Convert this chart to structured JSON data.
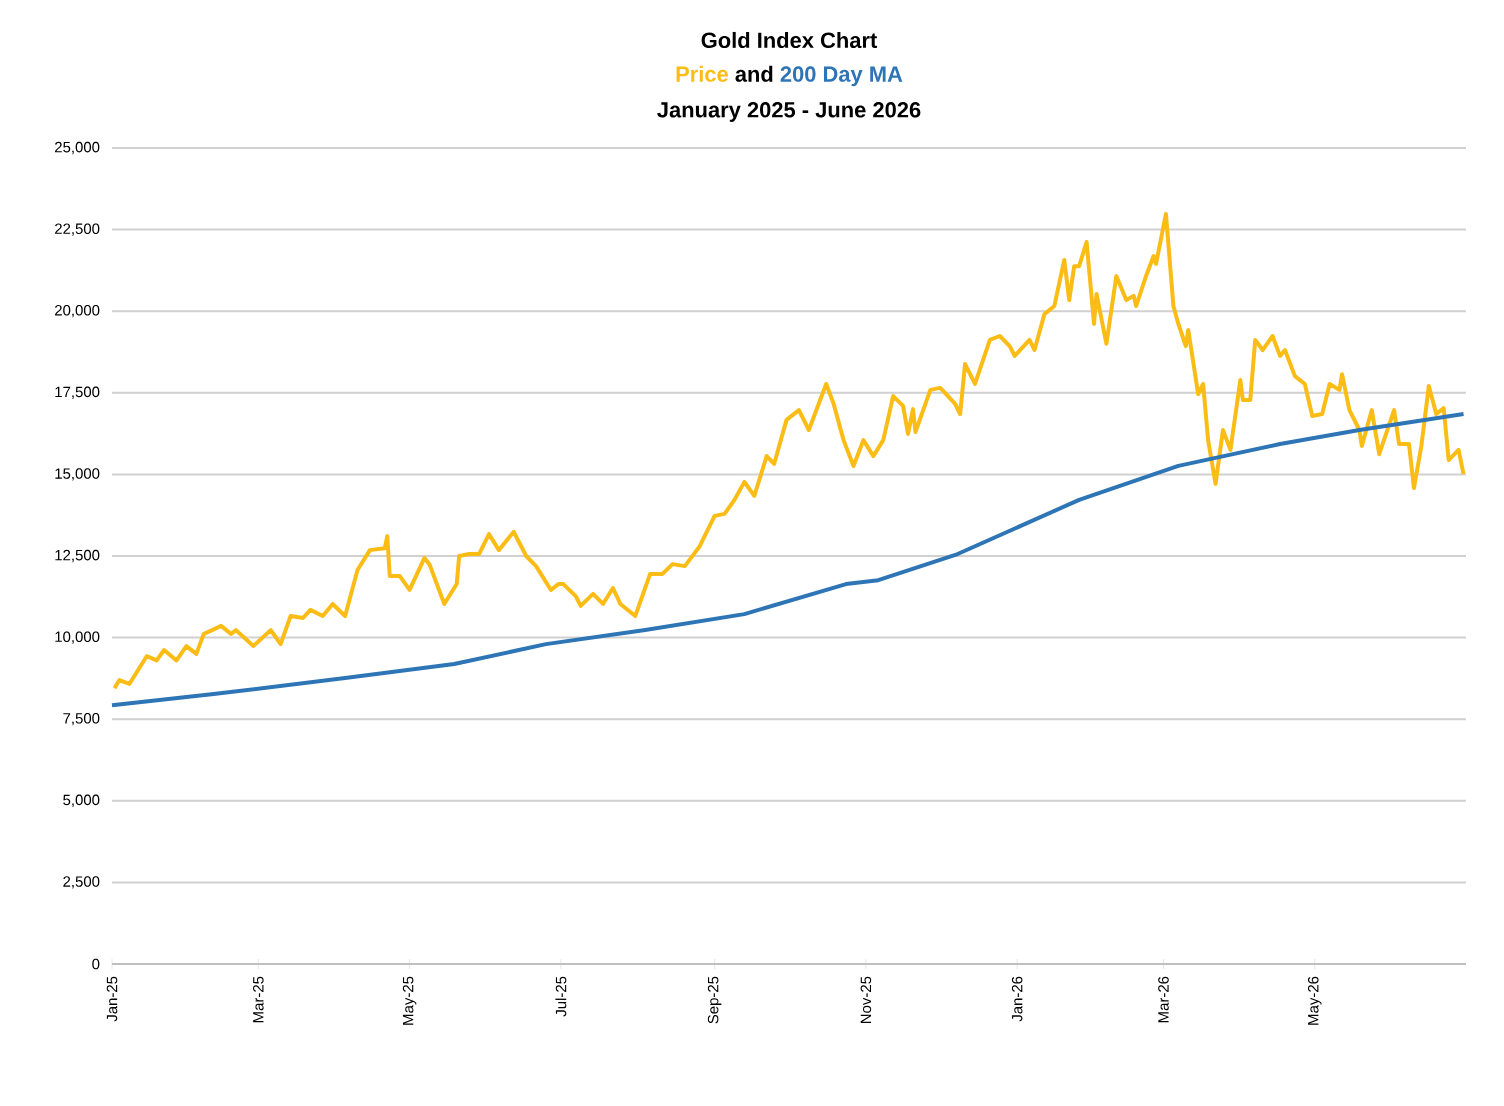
{
  "chart_data": {
    "type": "line",
    "title": "Gold Index Chart",
    "subtitle": "January 2025 - June 2026",
    "annotations": [
      "and"
    ],
    "legend": "top",
    "grid": "y",
    "marker": "none",
    "line_style": "solid",
    "xlim": [
      "2025-01-01",
      "2026-07-01"
    ],
    "xticks": [
      {
        "value": "2025-01-01",
        "label": "Jan-25"
      },
      {
        "value": "2025-03-01",
        "label": "Mar-25"
      },
      {
        "value": "2025-05-01",
        "label": "May-25"
      },
      {
        "value": "2025-07-01",
        "label": "Jul-25"
      },
      {
        "value": "2025-09-01",
        "label": "Sep-25"
      },
      {
        "value": "2025-11-01",
        "label": "Nov-25"
      },
      {
        "value": "2026-01-01",
        "label": "Jan-26"
      },
      {
        "value": "2026-03-01",
        "label": "Mar-26"
      },
      {
        "value": "2026-05-01",
        "label": "May-26"
      }
    ],
    "ylim": [
      0,
      25000
    ],
    "yticks": [
      0,
      {
        "value": 2500,
        "label": "2,500"
      },
      {
        "value": 5000,
        "label": "5,000"
      },
      {
        "value": 7500,
        "label": "7,500"
      },
      {
        "value": 10000,
        "label": "10,000"
      },
      {
        "value": 12500,
        "label": "12,500"
      },
      {
        "value": 15000,
        "label": "15,000"
      },
      {
        "value": 17500,
        "label": "17,500"
      },
      {
        "value": 20000,
        "label": "20,000"
      },
      {
        "value": 22500,
        "label": "22,500"
      },
      {
        "value": 25000,
        "label": "25,000"
      }
    ],
    "series": [
      {
        "name": "Price",
        "color": "#fbbc15",
        "x": [
          "2025-01-02",
          "2025-01-04",
          "2025-01-08",
          "2025-01-15",
          "2025-01-19",
          "2025-01-22",
          "2025-01-27",
          "2025-01-31",
          "2025-02-04",
          "2025-02-07",
          "2025-02-14",
          "2025-02-18",
          "2025-02-20",
          "2025-02-27",
          "2025-03-06",
          "2025-03-10",
          "2025-03-14",
          "2025-03-19",
          "2025-03-22",
          "2025-03-27",
          "2025-03-31",
          "2025-04-05",
          "2025-04-10",
          "2025-04-15",
          "2025-04-21",
          "2025-04-22",
          "2025-04-23",
          "2025-04-27",
          "2025-05-01",
          "2025-05-07",
          "2025-05-09",
          "2025-05-15",
          "2025-05-20",
          "2025-05-21",
          "2025-05-25",
          "2025-05-29",
          "2025-06-02",
          "2025-06-06",
          "2025-06-12",
          "2025-06-17",
          "2025-06-21",
          "2025-06-27",
          "2025-06-30",
          "2025-07-02",
          "2025-07-07",
          "2025-07-09",
          "2025-07-14",
          "2025-07-18",
          "2025-07-22",
          "2025-07-25",
          "2025-07-31",
          "2025-08-06",
          "2025-08-11",
          "2025-08-15",
          "2025-08-20",
          "2025-08-26",
          "2025-09-01",
          "2025-09-05",
          "2025-09-09",
          "2025-09-13",
          "2025-09-17",
          "2025-09-22",
          "2025-09-25",
          "2025-09-30",
          "2025-10-05",
          "2025-10-09",
          "2025-10-16",
          "2025-10-19",
          "2025-10-23",
          "2025-10-27",
          "2025-10-31",
          "2025-11-04",
          "2025-11-08",
          "2025-11-12",
          "2025-11-16",
          "2025-11-18",
          "2025-11-20",
          "2025-11-21",
          "2025-11-27",
          "2025-12-01",
          "2025-12-07",
          "2025-12-09",
          "2025-12-11",
          "2025-12-15",
          "2025-12-21",
          "2025-12-25",
          "2025-12-29",
          "2025-12-31",
          "2026-01-06",
          "2026-01-08",
          "2026-01-12",
          "2026-01-16",
          "2026-01-20",
          "2026-01-22",
          "2026-01-24",
          "2026-01-26",
          "2026-01-29",
          "2026-02-01",
          "2026-02-02",
          "2026-02-06",
          "2026-02-10",
          "2026-02-14",
          "2026-02-17",
          "2026-02-18",
          "2026-02-22",
          "2026-02-25",
          "2026-02-26",
          "2026-03-02",
          "2026-03-05",
          "2026-03-07",
          "2026-03-10",
          "2026-03-11",
          "2026-03-15",
          "2026-03-17",
          "2026-03-19",
          "2026-03-22",
          "2026-03-25",
          "2026-03-28",
          "2026-04-01",
          "2026-04-02",
          "2026-04-05",
          "2026-04-07",
          "2026-04-10",
          "2026-04-14",
          "2026-04-17",
          "2026-04-19",
          "2026-04-23",
          "2026-04-27",
          "2026-04-30",
          "2026-05-04",
          "2026-05-07",
          "2026-05-11",
          "2026-05-12",
          "2026-05-15",
          "2026-05-19",
          "2026-05-20",
          "2026-05-24",
          "2026-05-27",
          "2026-06-02",
          "2026-06-04",
          "2026-06-08",
          "2026-06-10",
          "2026-06-13",
          "2026-06-16",
          "2026-06-19",
          "2026-06-22",
          "2026-06-24",
          "2026-06-28",
          "2026-06-30"
        ],
        "values": [
          8450,
          8700,
          8580,
          9430,
          9300,
          9620,
          9300,
          9740,
          9500,
          10110,
          10360,
          10110,
          10230,
          9740,
          10230,
          9800,
          10660,
          10600,
          10850,
          10660,
          11030,
          10660,
          12070,
          12680,
          12740,
          13110,
          11890,
          11890,
          11460,
          12440,
          12250,
          11030,
          11640,
          12500,
          12560,
          12560,
          13170,
          12680,
          13240,
          12500,
          12190,
          11460,
          11640,
          11640,
          11270,
          10970,
          11340,
          11030,
          11520,
          11030,
          10660,
          11950,
          11950,
          12250,
          12190,
          12800,
          13730,
          13790,
          14220,
          14770,
          14340,
          15560,
          15320,
          16670,
          16970,
          16360,
          17770,
          17160,
          16050,
          15260,
          16050,
          15560,
          16050,
          17400,
          17100,
          16240,
          17000,
          16300,
          17590,
          17650,
          17160,
          16850,
          18380,
          17770,
          19120,
          19240,
          18930,
          18630,
          19120,
          18810,
          19910,
          20160,
          21570,
          20340,
          21380,
          21380,
          22120,
          19610,
          20530,
          19000,
          21080,
          20340,
          20470,
          20160,
          21080,
          21690,
          21450,
          22980,
          20160,
          19610,
          18930,
          19420,
          17460,
          17770,
          16050,
          14710,
          16360,
          15750,
          17890,
          17280,
          17280,
          19120,
          18810,
          19240,
          18630,
          18810,
          18010,
          17770,
          16790,
          16850,
          17770,
          17590,
          18070,
          16970,
          16360,
          15870,
          16970,
          15620,
          16970,
          15930,
          15930,
          14580,
          15870,
          17710,
          16850,
          17030,
          15440,
          15750,
          15010
        ]
      },
      {
        "name": "200 Day MA",
        "color": "#2e75b6",
        "x": [
          "2025-01-01",
          "2025-02-11",
          "2025-04-05",
          "2025-05-19",
          "2025-06-25",
          "2025-08-04",
          "2025-09-13",
          "2025-10-24",
          "2025-11-06",
          "2025-12-08",
          "2026-01-26",
          "2026-03-07",
          "2026-04-17",
          "2026-05-19",
          "2026-06-30"
        ],
        "values": [
          7930,
          8270,
          8760,
          9190,
          9800,
          10230,
          10720,
          11640,
          11760,
          12560,
          14220,
          15260,
          15930,
          16360,
          16850
        ]
      }
    ]
  }
}
